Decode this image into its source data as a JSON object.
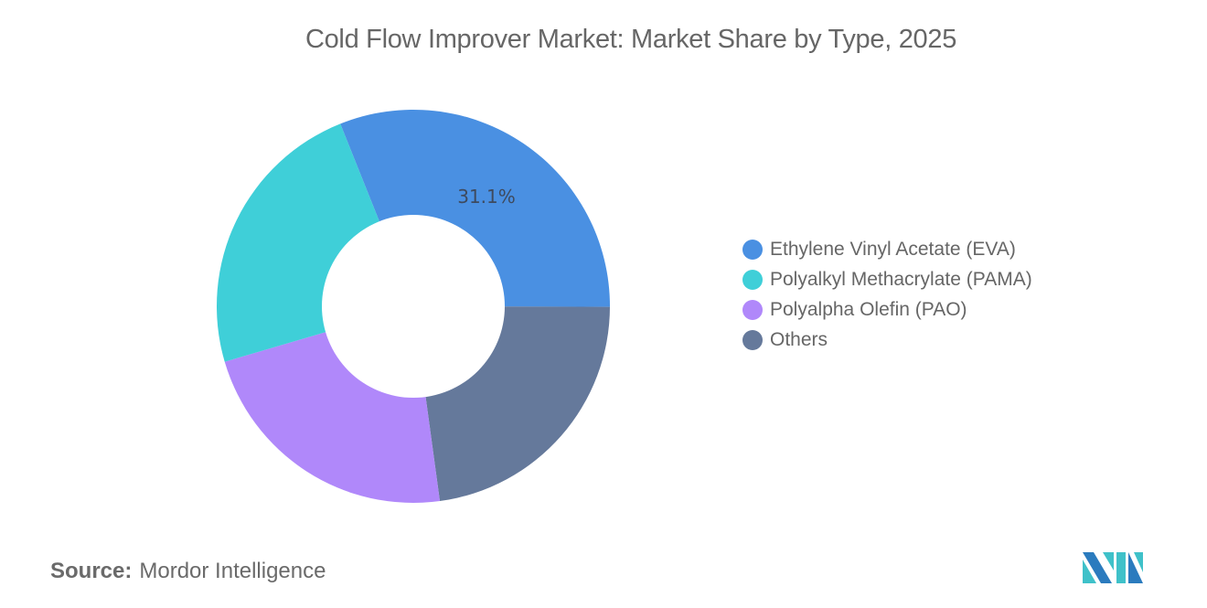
{
  "title": "Cold Flow Improver Market: Market Share by Type, 2025",
  "source": {
    "label": "Source:",
    "value": "Mordor Intelligence"
  },
  "legend": [
    {
      "label": "Ethylene Vinyl Acetate (EVA)",
      "color": "#4A90E2"
    },
    {
      "label": "Polyalkyl Methacrylate (PAMA)",
      "color": "#3FCFD8"
    },
    {
      "label": "Polyalpha Olefin (PAO)",
      "color": "#B088FA"
    },
    {
      "label": "Others",
      "color": "#65799B"
    }
  ],
  "data_label": "31.1%",
  "chart_data": {
    "type": "pie",
    "subtype": "donut",
    "title": "Cold Flow Improver Market: Market Share by Type, 2025",
    "categories": [
      "Ethylene Vinyl Acetate (EVA)",
      "Others",
      "Polyalpha Olefin (PAO)",
      "Polyalkyl Methacrylate (PAMA)"
    ],
    "values": [
      31.1,
      22.8,
      22.6,
      23.5
    ],
    "colors": [
      "#4A90E2",
      "#65799B",
      "#B088FA",
      "#3FCFD8"
    ],
    "labeled_values": {
      "Ethylene Vinyl Acetate (EVA)": "31.1%"
    },
    "legend_position": "right",
    "start_angle_deg_clockwise_from_top": 338.2
  }
}
